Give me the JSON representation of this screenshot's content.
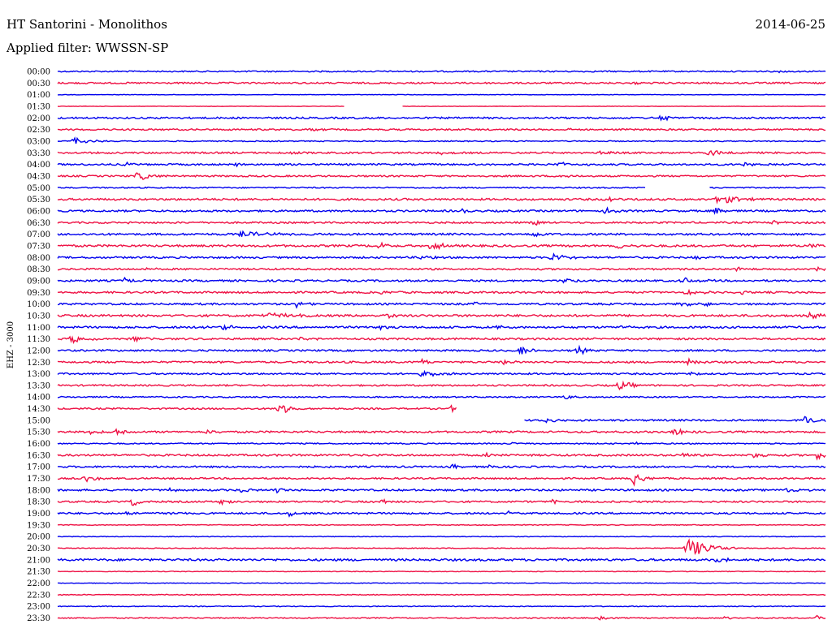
{
  "header": {
    "station": "HT Santorini - Monolithos",
    "date": "2014-06-25",
    "filter_label": "Applied filter: WWSSN-SP"
  },
  "colors": {
    "blue": "#0000ee",
    "red": "#ee1144",
    "background": "#ffffff"
  },
  "chart_data": {
    "type": "line",
    "title": "HT Santorini - Monolithos",
    "ylabel": "EHZ - 3000",
    "xlabel": "",
    "rows": [
      {
        "label": "00:00",
        "color": "blue",
        "gaps": [],
        "events": [
          [
            960,
            1.5,
            6
          ]
        ],
        "noise": 1
      },
      {
        "label": "00:30",
        "color": "red",
        "gaps": [],
        "events": [
          [
            780,
            1.2,
            10
          ]
        ],
        "noise": 1.2
      },
      {
        "label": "01:00",
        "color": "blue",
        "gaps": [],
        "events": [],
        "noise": 0.4
      },
      {
        "label": "01:30",
        "color": "red",
        "gaps": [
          [
            425,
            494
          ]
        ],
        "events": [],
        "noise": 0.3
      },
      {
        "label": "02:00",
        "color": "blue",
        "gaps": [],
        "events": [
          [
            440,
            1.5,
            8
          ],
          [
            815,
            3,
            20
          ]
        ],
        "noise": 1.3
      },
      {
        "label": "02:30",
        "color": "red",
        "gaps": [],
        "events": [
          [
            380,
            2,
            12
          ],
          [
            700,
            1.5,
            8
          ]
        ],
        "noise": 1.2
      },
      {
        "label": "03:00",
        "color": "blue",
        "gaps": [],
        "events": [
          [
            90,
            4,
            18
          ]
        ],
        "noise": 0.8
      },
      {
        "label": "03:30",
        "color": "red",
        "gaps": [],
        "events": [
          [
            360,
            3,
            8
          ],
          [
            540,
            2,
            10
          ],
          [
            738,
            4,
            10
          ],
          [
            872,
            5,
            12
          ]
        ],
        "noise": 1.3
      },
      {
        "label": "04:00",
        "color": "blue",
        "gaps": [],
        "events": [
          [
            152,
            3,
            8
          ],
          [
            290,
            2,
            8
          ],
          [
            690,
            3,
            20
          ],
          [
            915,
            3,
            10
          ]
        ],
        "noise": 1.3
      },
      {
        "label": "04:30",
        "color": "red",
        "gaps": [],
        "events": [
          [
            170,
            5,
            18
          ],
          [
            690,
            2,
            10
          ]
        ],
        "noise": 1.2
      },
      {
        "label": "05:00",
        "color": "blue",
        "gaps": [
          [
            795,
            872
          ]
        ],
        "events": [],
        "noise": 0.9
      },
      {
        "label": "05:30",
        "color": "red",
        "gaps": [],
        "events": [
          [
            750,
            3,
            12
          ],
          [
            885,
            7,
            18
          ]
        ],
        "noise": 1.5
      },
      {
        "label": "06:00",
        "color": "blue",
        "gaps": [],
        "events": [
          [
            568,
            5,
            4
          ],
          [
            745,
            4,
            12
          ],
          [
            880,
            5,
            8
          ]
        ],
        "noise": 1.4
      },
      {
        "label": "06:30",
        "color": "red",
        "gaps": [],
        "events": [
          [
            150,
            2,
            8
          ],
          [
            657,
            4,
            10
          ],
          [
            950,
            3,
            10
          ]
        ],
        "noise": 1.3
      },
      {
        "label": "07:00",
        "color": "blue",
        "gaps": [],
        "events": [
          [
            300,
            3,
            30
          ],
          [
            655,
            5,
            10
          ]
        ],
        "noise": 1.5
      },
      {
        "label": "07:30",
        "color": "red",
        "gaps": [],
        "events": [
          [
            465,
            4,
            10
          ],
          [
            528,
            5,
            16
          ],
          [
            760,
            4,
            14
          ],
          [
            995,
            3,
            12
          ]
        ],
        "noise": 1.6
      },
      {
        "label": "08:00",
        "color": "blue",
        "gaps": [],
        "events": [
          [
            518,
            4,
            8
          ],
          [
            680,
            5,
            16
          ],
          [
            855,
            3,
            8
          ]
        ],
        "noise": 1.4
      },
      {
        "label": "08:30",
        "color": "red",
        "gaps": [],
        "events": [
          [
            180,
            2,
            8
          ],
          [
            905,
            4,
            12
          ],
          [
            1000,
            4,
            10
          ]
        ],
        "noise": 1.3
      },
      {
        "label": "09:00",
        "color": "blue",
        "gaps": [],
        "events": [
          [
            153,
            5,
            5
          ],
          [
            695,
            4,
            12
          ],
          [
            840,
            4,
            16
          ]
        ],
        "noise": 1.4
      },
      {
        "label": "09:30",
        "color": "red",
        "gaps": [],
        "events": [
          [
            465,
            3,
            12
          ],
          [
            845,
            5,
            12
          ],
          [
            912,
            3,
            8
          ]
        ],
        "noise": 1.4
      },
      {
        "label": "10:00",
        "color": "blue",
        "gaps": [],
        "events": [
          [
            365,
            4,
            8
          ],
          [
            585,
            3,
            8
          ],
          [
            835,
            4,
            14
          ],
          [
            868,
            3,
            8
          ]
        ],
        "noise": 1.4
      },
      {
        "label": "10:30",
        "color": "red",
        "gaps": [],
        "events": [
          [
            330,
            3,
            30
          ],
          [
            475,
            4,
            10
          ],
          [
            995,
            4,
            16
          ]
        ],
        "noise": 1.6
      },
      {
        "label": "11:00",
        "color": "blue",
        "gaps": [],
        "events": [
          [
            245,
            3,
            8
          ],
          [
            275,
            4,
            10
          ],
          [
            462,
            4,
            8
          ],
          [
            612,
            2,
            8
          ],
          [
            765,
            3,
            6
          ]
        ],
        "noise": 1.5
      },
      {
        "label": "11:30",
        "color": "red",
        "gaps": [],
        "events": [
          [
            88,
            5,
            14
          ],
          [
            165,
            3,
            12
          ],
          [
            370,
            3,
            10
          ]
        ],
        "noise": 1.4
      },
      {
        "label": "12:00",
        "color": "blue",
        "gaps": [],
        "events": [
          [
            640,
            6,
            12
          ],
          [
            710,
            6,
            10
          ]
        ],
        "noise": 1.3
      },
      {
        "label": "12:30",
        "color": "red",
        "gaps": [],
        "events": [
          [
            520,
            4,
            8
          ],
          [
            620,
            3,
            8
          ],
          [
            848,
            4,
            10
          ]
        ],
        "noise": 1.4
      },
      {
        "label": "13:00",
        "color": "blue",
        "gaps": [],
        "events": [
          [
            520,
            4,
            16
          ],
          [
            848,
            4,
            6
          ]
        ],
        "noise": 1.3
      },
      {
        "label": "13:30",
        "color": "red",
        "gaps": [],
        "events": [
          [
            762,
            6,
            14
          ]
        ],
        "noise": 1.2
      },
      {
        "label": "14:00",
        "color": "blue",
        "gaps": [],
        "events": [
          [
            695,
            3,
            14
          ]
        ],
        "noise": 1.0
      },
      {
        "label": "14:30",
        "color": "red",
        "gaps": [
          [
            562,
            1016
          ]
        ],
        "events": [
          [
            343,
            9,
            12
          ],
          [
            555,
            5,
            6
          ]
        ],
        "noise": 1.2
      },
      {
        "label": "15:00",
        "color": "blue",
        "gaps": [
          [
            71,
            645
          ]
        ],
        "events": [
          [
            672,
            3,
            10
          ],
          [
            990,
            6,
            14
          ]
        ],
        "noise": 1.3
      },
      {
        "label": "15:30",
        "color": "red",
        "gaps": [],
        "events": [
          [
            112,
            5,
            10
          ],
          [
            143,
            4,
            10
          ],
          [
            254,
            3,
            10
          ],
          [
            830,
            5,
            12
          ]
        ],
        "noise": 1.4
      },
      {
        "label": "16:00",
        "color": "blue",
        "gaps": [],
        "events": [
          [
            628,
            2,
            6
          ],
          [
            780,
            2,
            6
          ]
        ],
        "noise": 0.9
      },
      {
        "label": "16:30",
        "color": "red",
        "gaps": [],
        "events": [
          [
            598,
            4,
            8
          ],
          [
            838,
            4,
            10
          ],
          [
            926,
            4,
            10
          ],
          [
            1005,
            5,
            10
          ]
        ],
        "noise": 1.4
      },
      {
        "label": "17:00",
        "color": "blue",
        "gaps": [],
        "events": [
          [
            178,
            2,
            8
          ],
          [
            555,
            3,
            8
          ],
          [
            600,
            4,
            8
          ]
        ],
        "noise": 1.3
      },
      {
        "label": "17:30",
        "color": "red",
        "gaps": [],
        "events": [
          [
            105,
            4,
            14
          ],
          [
            780,
            8,
            12
          ]
        ],
        "noise": 1.2
      },
      {
        "label": "18:00",
        "color": "blue",
        "gaps": [],
        "events": [
          [
            208,
            3,
            6
          ],
          [
            294,
            4,
            10
          ],
          [
            340,
            4,
            6
          ],
          [
            965,
            3,
            14
          ]
        ],
        "noise": 1.4
      },
      {
        "label": "18:30",
        "color": "red",
        "gaps": [],
        "events": [
          [
            162,
            7,
            6
          ],
          [
            272,
            4,
            10
          ],
          [
            470,
            3,
            8
          ],
          [
            680,
            3,
            10
          ]
        ],
        "noise": 1.3
      },
      {
        "label": "19:00",
        "color": "blue",
        "gaps": [],
        "events": [
          [
            153,
            4,
            10
          ],
          [
            208,
            3,
            8
          ],
          [
            357,
            5,
            8
          ],
          [
            625,
            3,
            8
          ]
        ],
        "noise": 1.3
      },
      {
        "label": "19:30",
        "color": "red",
        "gaps": [],
        "events": [],
        "noise": 0.6
      },
      {
        "label": "20:00",
        "color": "blue",
        "gaps": [],
        "events": [],
        "noise": 0.5
      },
      {
        "label": "20:30",
        "color": "red",
        "gaps": [],
        "events": [
          [
            848,
            12,
            24
          ]
        ],
        "noise": 0.6
      },
      {
        "label": "21:00",
        "color": "blue",
        "gaps": [],
        "events": [
          [
            884,
            4,
            20
          ]
        ],
        "noise": 1.6
      },
      {
        "label": "21:30",
        "color": "red",
        "gaps": [],
        "events": [],
        "noise": 0.5
      },
      {
        "label": "22:00",
        "color": "blue",
        "gaps": [],
        "events": [],
        "noise": 0.4
      },
      {
        "label": "22:30",
        "color": "red",
        "gaps": [],
        "events": [],
        "noise": 0.6
      },
      {
        "label": "23:00",
        "color": "blue",
        "gaps": [],
        "events": [],
        "noise": 0.6
      },
      {
        "label": "23:30",
        "color": "red",
        "gaps": [],
        "events": [
          [
            738,
            2,
            10
          ],
          [
            890,
            4,
            6
          ],
          [
            1005,
            3,
            8
          ]
        ],
        "noise": 0.8
      }
    ]
  }
}
